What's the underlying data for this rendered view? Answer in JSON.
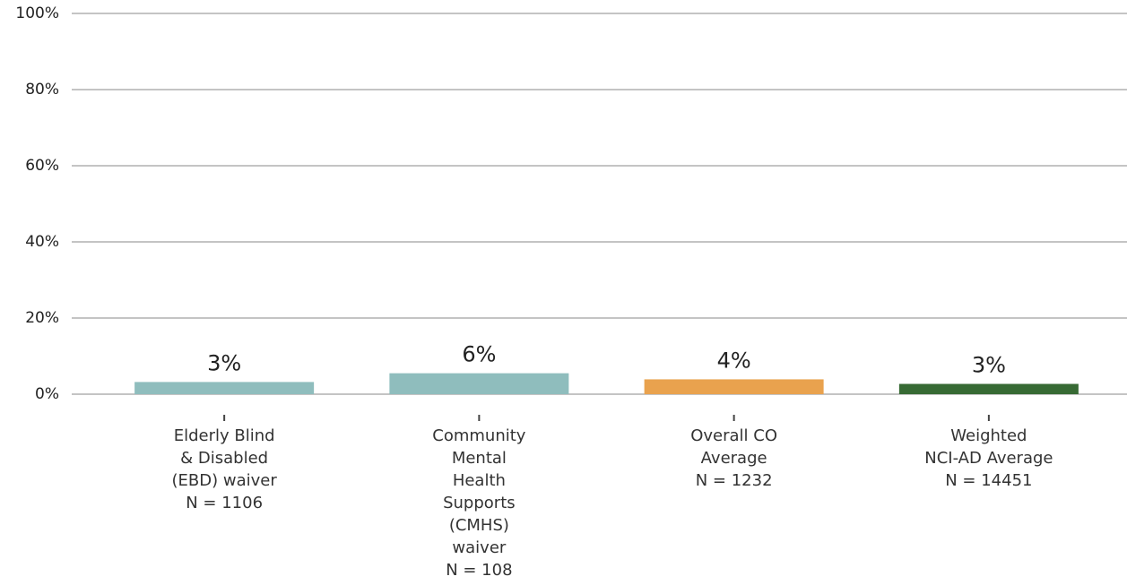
{
  "chart_data": {
    "type": "bar",
    "categories": [
      "Elderly Blind\n& Disabled\n(EBD) waiver\nN = 1106",
      "Community\nMental\nHealth\nSupports\n(CMHS)\nwaiver\nN = 108",
      "Overall CO\nAverage\nN = 1232",
      "Weighted\nNCI-AD Average\nN = 14451"
    ],
    "values": [
      3.2,
      5.5,
      3.9,
      2.7
    ],
    "value_labels": [
      "3%",
      "6%",
      "4%",
      "3%"
    ],
    "colors": [
      "#8fbdbd",
      "#8fbdbd",
      "#e9a24e",
      "#376a34"
    ],
    "ylim": [
      0,
      100
    ],
    "yticks": [
      {
        "value": 0,
        "label": "0%"
      },
      {
        "value": 20,
        "label": "20%"
      },
      {
        "value": 40,
        "label": "40%"
      },
      {
        "value": 60,
        "label": "60%"
      },
      {
        "value": 80,
        "label": "80%"
      },
      {
        "value": 100,
        "label": "100%"
      }
    ],
    "grid": true
  }
}
